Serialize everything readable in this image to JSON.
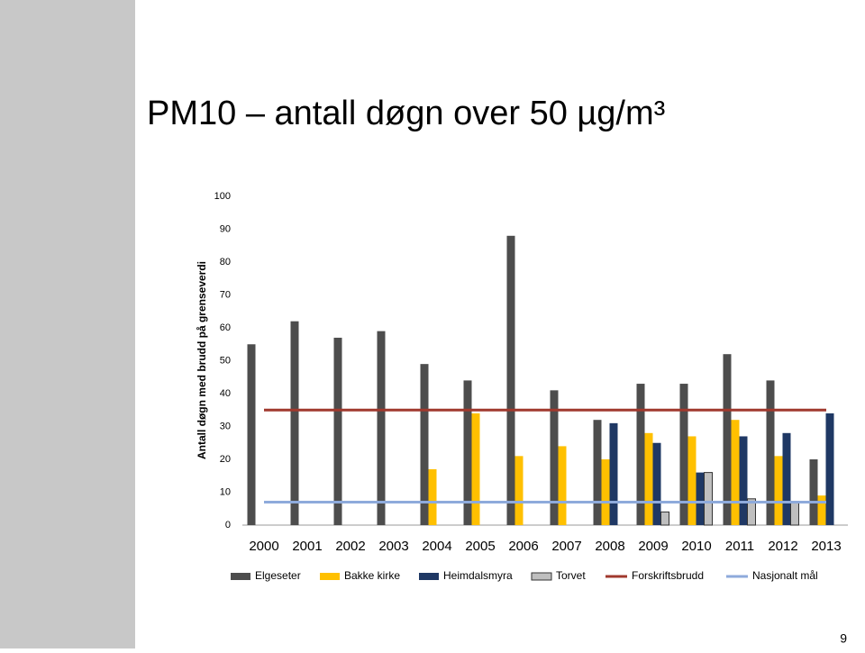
{
  "chart_data": {
    "type": "bar",
    "title": "PM10 – antall døgn over 50 µg/m³",
    "y_label": "Antall døgn med brudd på grenseverdi",
    "categories": [
      "2000",
      "2001",
      "2002",
      "2003",
      "2004",
      "2005",
      "2006",
      "2007",
      "2008",
      "2009",
      "2010",
      "2011",
      "2012",
      "2013"
    ],
    "series": [
      {
        "name": "Elgeseter",
        "type": "bar",
        "color": "#4d4d4d",
        "values": [
          55,
          62,
          57,
          59,
          49,
          44,
          88,
          41,
          32,
          43,
          43,
          52,
          44,
          20
        ]
      },
      {
        "name": "Bakke kirke",
        "type": "bar",
        "color": "#ffc000",
        "values": [
          null,
          null,
          null,
          null,
          17,
          34,
          21,
          24,
          20,
          28,
          27,
          32,
          21,
          9
        ]
      },
      {
        "name": "Heimdalsmyra",
        "type": "bar",
        "color": "#1f3864",
        "values": [
          null,
          null,
          null,
          null,
          null,
          null,
          null,
          null,
          31,
          25,
          16,
          27,
          28,
          34
        ]
      },
      {
        "name": "Torvet",
        "type": "bar",
        "color": "#bfbfbf",
        "values": [
          null,
          null,
          null,
          null,
          null,
          null,
          null,
          null,
          null,
          4,
          16,
          8,
          7,
          null
        ]
      },
      {
        "name": "Forskriftsbrudd",
        "type": "line",
        "color": "#a0392e",
        "values": [
          35,
          35,
          35,
          35,
          35,
          35,
          35,
          35,
          35,
          35,
          35,
          35,
          35,
          35
        ]
      },
      {
        "name": "Nasjonalt mål",
        "type": "line",
        "color": "#8eaadb",
        "values": [
          7,
          7,
          7,
          7,
          7,
          7,
          7,
          7,
          7,
          7,
          7,
          7,
          7,
          7
        ]
      }
    ],
    "ylim": [
      0,
      100
    ],
    "yticks": [
      0,
      10,
      20,
      30,
      40,
      50,
      60,
      70,
      80,
      90,
      100
    ],
    "grid": false,
    "legend": "bottom"
  },
  "page_number": "9"
}
